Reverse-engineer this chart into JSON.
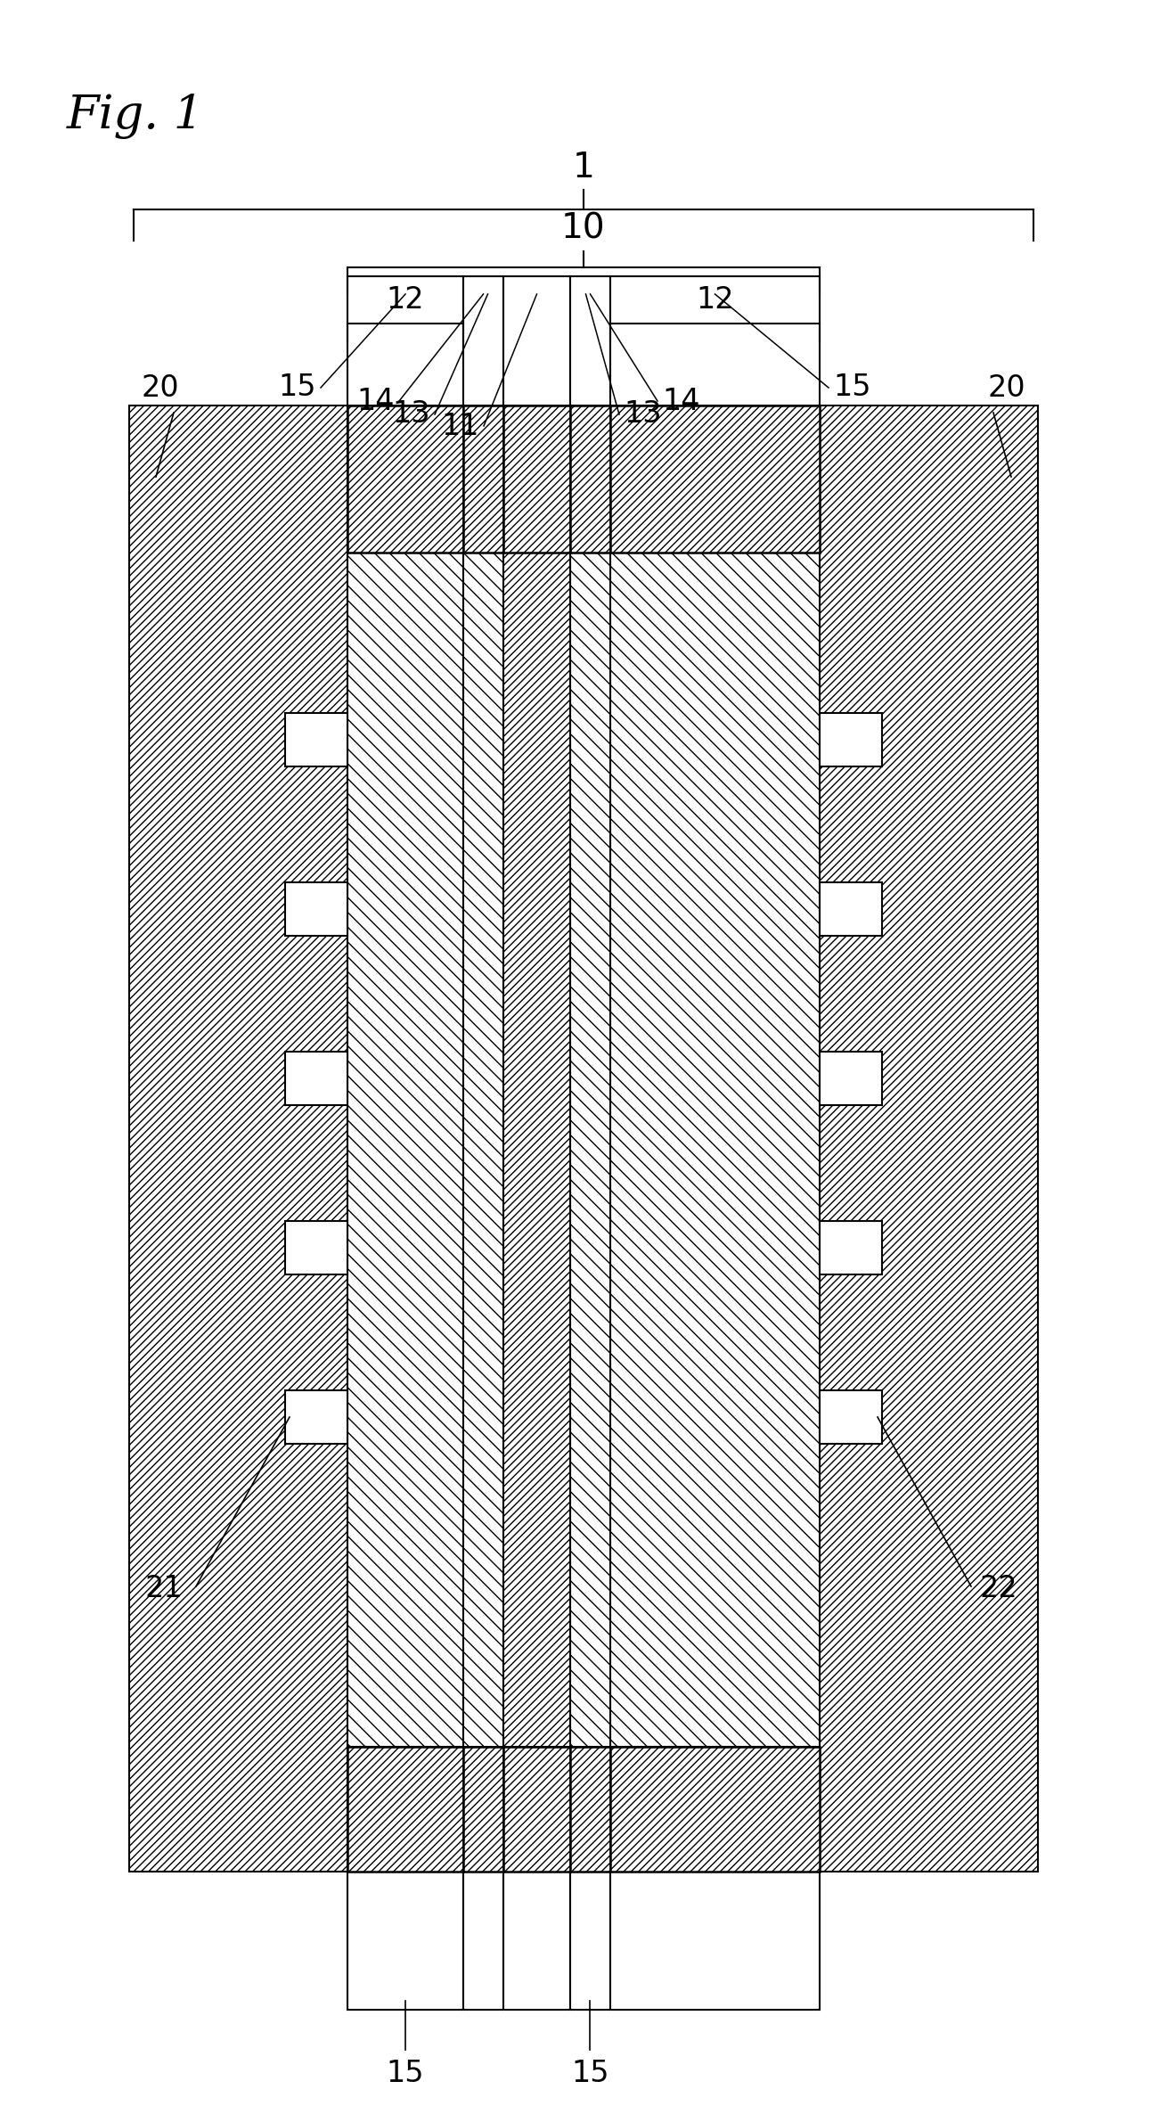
{
  "fig_label": "Fig. 1",
  "background_color": "#ffffff",
  "line_color": "#000000",
  "label_1": "1",
  "label_10": "10",
  "label_11": "11",
  "label_12_left": "12",
  "label_12_right": "12",
  "label_13_left": "13",
  "label_13_right": "13",
  "label_14_left": "14",
  "label_14_right": "14",
  "label_15": "15",
  "label_20_left": "20",
  "label_20_right": "20",
  "label_21": "21",
  "label_22": "22",
  "figsize": [
    13.11,
    23.72
  ],
  "dpi": 100
}
